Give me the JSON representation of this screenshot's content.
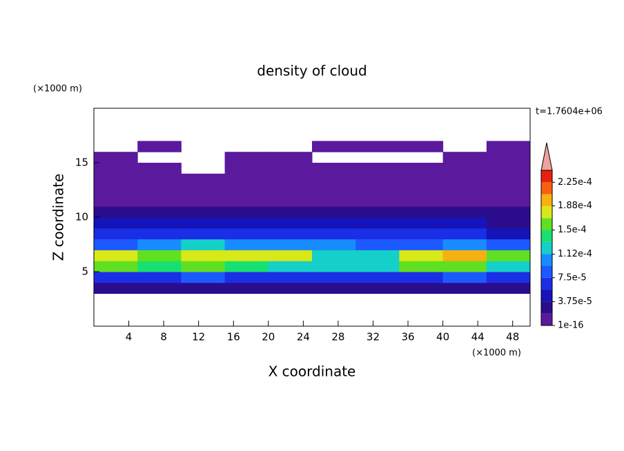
{
  "chart_data": {
    "type": "contour",
    "title": "density of cloud",
    "subtitle": "t=1.7604e+06",
    "x_label": "X coordinate",
    "y_label": "Z coordinate",
    "x_unit": "(×1000 m)",
    "y_unit": "(×1000 m)",
    "xlim": [
      0,
      50
    ],
    "ylim": [
      0,
      20
    ],
    "xticks": [
      4,
      8,
      12,
      16,
      20,
      24,
      28,
      32,
      36,
      40,
      44,
      48
    ],
    "yticks": [
      5,
      10,
      15
    ],
    "x": [
      2.5,
      7.5,
      12.5,
      17.5,
      22.5,
      27.5,
      32.5,
      37.5,
      42.5,
      47.5
    ],
    "y": [
      0.5,
      1.5,
      2.5,
      3.5,
      4.5,
      5.5,
      6.5,
      7.5,
      8.5,
      9.5,
      10.5,
      11.5,
      12.5,
      13.5,
      14.5,
      15.5,
      16.5,
      17.5,
      18.5,
      19.5
    ],
    "z": [
      [
        null,
        null,
        null,
        null,
        null,
        null,
        null,
        null,
        null,
        null
      ],
      [
        null,
        null,
        null,
        null,
        null,
        null,
        null,
        null,
        null,
        null
      ],
      [
        null,
        null,
        null,
        null,
        null,
        null,
        null,
        null,
        null,
        null
      ],
      [
        2e-05,
        2e-05,
        2e-05,
        2e-05,
        2e-05,
        2e-05,
        2e-05,
        2e-05,
        2e-05,
        2e-05
      ],
      [
        7e-05,
        7e-05,
        8e-05,
        7e-05,
        7e-05,
        7e-05,
        7e-05,
        7e-05,
        8e-05,
        7e-05
      ],
      [
        0.00015,
        0.00014,
        0.00015,
        0.00014,
        0.00013,
        0.00012,
        0.00012,
        0.00015,
        0.00016,
        0.00013
      ],
      [
        0.00017,
        0.00016,
        0.00018,
        0.00017,
        0.00017,
        0.00013,
        0.00012,
        0.00018,
        0.00019,
        0.00015
      ],
      [
        9e-05,
        0.0001,
        0.00013,
        0.00011,
        0.0001,
        0.0001,
        9e-05,
        9e-05,
        0.0001,
        8e-05
      ],
      [
        6e-05,
        6e-05,
        7e-05,
        6e-05,
        6e-05,
        6e-05,
        6e-05,
        6e-05,
        6e-05,
        5e-05
      ],
      [
        4e-05,
        4e-05,
        4.5e-05,
        4e-05,
        4e-05,
        4e-05,
        4e-05,
        4e-05,
        4e-05,
        3e-05
      ],
      [
        2.5e-05,
        3e-05,
        3e-05,
        2.5e-05,
        2.5e-05,
        2e-05,
        2.5e-05,
        2e-05,
        2e-05,
        2e-05
      ],
      [
        1e-05,
        1e-05,
        1e-05,
        1e-05,
        1e-05,
        1e-05,
        1e-05,
        1e-05,
        1e-05,
        1e-05
      ],
      [
        5e-06,
        5e-06,
        5e-06,
        5e-06,
        5e-06,
        5e-06,
        5e-06,
        5e-06,
        5e-06,
        5e-06
      ],
      [
        5e-06,
        5e-06,
        5e-06,
        5e-06,
        5e-06,
        5e-06,
        5e-06,
        5e-06,
        5e-06,
        5e-06
      ],
      [
        5e-06,
        5e-06,
        null,
        5e-06,
        5e-06,
        5e-06,
        5e-06,
        5e-06,
        5e-06,
        5e-06
      ],
      [
        5e-06,
        null,
        null,
        5e-06,
        5e-06,
        null,
        null,
        null,
        5e-06,
        5e-06
      ],
      [
        null,
        5e-06,
        null,
        null,
        null,
        5e-06,
        5e-06,
        5e-06,
        null,
        5e-06
      ],
      [
        null,
        null,
        null,
        null,
        null,
        null,
        null,
        null,
        null,
        null
      ],
      [
        null,
        null,
        null,
        null,
        null,
        null,
        null,
        null,
        null,
        null
      ],
      [
        null,
        null,
        null,
        null,
        null,
        null,
        null,
        null,
        null,
        null
      ]
    ],
    "levels": [
      1e-16,
      1.875e-05,
      3.75e-05,
      5.625e-05,
      7.5e-05,
      9.375e-05,
      0.0001125,
      0.00013125,
      0.00015,
      0.00016875,
      0.0001875,
      0.00020625,
      0.000225,
      0.00024375
    ],
    "colors": [
      "#5b1a9e",
      "#2b0c8c",
      "#1414b8",
      "#1a2ee6",
      "#1c5aff",
      "#188cff",
      "#14d0c8",
      "#18e070",
      "#60e020",
      "#d8e818",
      "#f8b010",
      "#f86010",
      "#e82010"
    ],
    "extend_color": "#f0a0a0",
    "colorbar_ticks": [
      {
        "value": 1e-16,
        "label": "1e-16"
      },
      {
        "value": 3.75e-05,
        "label": "3.75e-5"
      },
      {
        "value": 7.5e-05,
        "label": "7.5e-5"
      },
      {
        "value": 0.000112,
        "label": "1.12e-4"
      },
      {
        "value": 0.00015,
        "label": "1.5e-4"
      },
      {
        "value": 0.000188,
        "label": "1.88e-4"
      },
      {
        "value": 0.000225,
        "label": "2.25e-4"
      }
    ]
  }
}
